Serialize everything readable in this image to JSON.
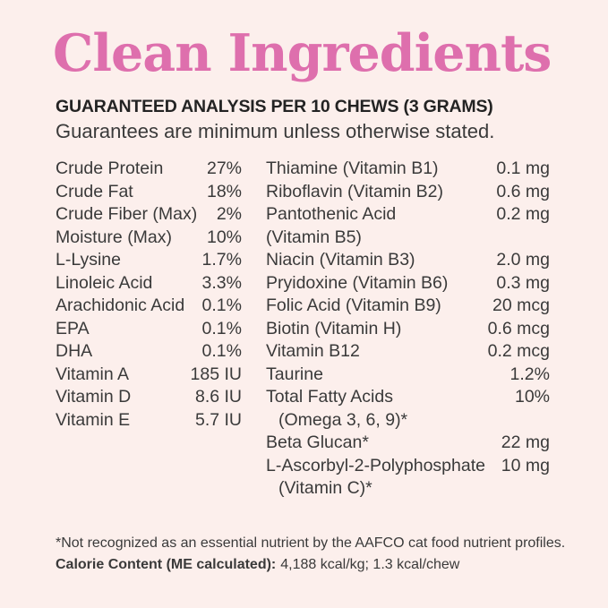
{
  "header": {
    "title": "Clean Ingredients",
    "analysis_heading": "GUARANTEED ANALYSIS PER 10 CHEWS (3 GRAMS)",
    "guarantee_note": "Guarantees are minimum unless otherwise stated."
  },
  "colors": {
    "background": "#fcefec",
    "accent_pink": "#de6fad",
    "heading_text": "#232323",
    "body_text": "#3a3a3a"
  },
  "analysis": {
    "left": [
      {
        "label": "Crude Protein",
        "value": "27%"
      },
      {
        "label": "Crude Fat",
        "value": "18%"
      },
      {
        "label": "Crude Fiber (Max)",
        "value": "2%"
      },
      {
        "label": "Moisture (Max)",
        "value": "10%"
      },
      {
        "label": "L-Lysine",
        "value": "1.7%"
      },
      {
        "label": "Linoleic Acid",
        "value": "3.3%"
      },
      {
        "label": "Arachidonic Acid",
        "value": "0.1%"
      },
      {
        "label": "EPA",
        "value": "0.1%"
      },
      {
        "label": "DHA",
        "value": "0.1%"
      },
      {
        "label": "Vitamin A",
        "value": "185 IU"
      },
      {
        "label": "Vitamin D",
        "value": "8.6 IU"
      },
      {
        "label": "Vitamin E",
        "value": "5.7 IU"
      }
    ],
    "right": [
      {
        "label": "Thiamine (Vitamin B1)",
        "value": "0.1 mg"
      },
      {
        "label": "Riboflavin (Vitamin B2)",
        "value": "0.6 mg"
      },
      {
        "label": "Pantothenic Acid",
        "value": "0.2 mg"
      },
      {
        "label": "(Vitamin B5)",
        "value": ""
      },
      {
        "label": "Niacin (Vitamin B3)",
        "value": "2.0 mg"
      },
      {
        "label": "Pryidoxine (Vitamin B6)",
        "value": "0.3 mg"
      },
      {
        "label": "Folic Acid (Vitamin B9)",
        "value": "20 mcg"
      },
      {
        "label": "Biotin (Vitamin H)",
        "value": "0.6 mcg"
      },
      {
        "label": "Vitamin B12",
        "value": "0.2 mcg"
      },
      {
        "label": "Taurine",
        "value": "1.2%"
      },
      {
        "label": "Total Fatty Acids",
        "value": "10%"
      },
      {
        "label": "(Omega 3, 6, 9)*",
        "value": ""
      },
      {
        "label": "Beta Glucan*",
        "value": "22 mg"
      },
      {
        "label": "L-Ascorbyl-2-Polyphosphate",
        "value": "10 mg"
      },
      {
        "label": "(Vitamin C)*",
        "value": ""
      }
    ]
  },
  "footnotes": {
    "aafco_note": "*Not recognized as an essential nutrient by the AAFCO cat food nutrient profiles.",
    "calorie_label": "Calorie Content (ME calculated):",
    "calorie_value": "4,188 kcal/kg; 1.3 kcal/chew"
  }
}
